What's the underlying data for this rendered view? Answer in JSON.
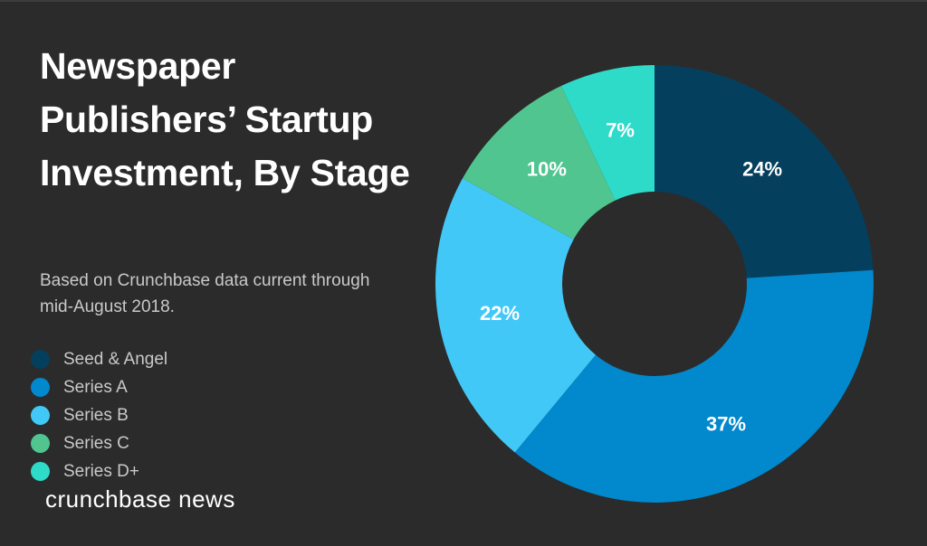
{
  "title": "Newspaper Publishers’ Startup Investment, By Stage",
  "subtitle": "Based on Crunchbase data current through mid-August 2018.",
  "brand": "crunchbase news",
  "chart_data": {
    "type": "pie",
    "title": "Newspaper Publishers’ Startup Investment, By Stage",
    "subtitle": "Based on Crunchbase data current through mid-August 2018.",
    "legend_position": "left",
    "categories": [
      "Seed & Angel",
      "Series A",
      "Series B",
      "Series C",
      "Series D+"
    ],
    "values": [
      24,
      37,
      22,
      10,
      7
    ],
    "value_labels": [
      "24%",
      "37%",
      "22%",
      "10%",
      "7%"
    ],
    "unit": "%",
    "colors": [
      "#053f5e",
      "#0288cc",
      "#42c8f7",
      "#50c590",
      "#2edbc9"
    ]
  }
}
